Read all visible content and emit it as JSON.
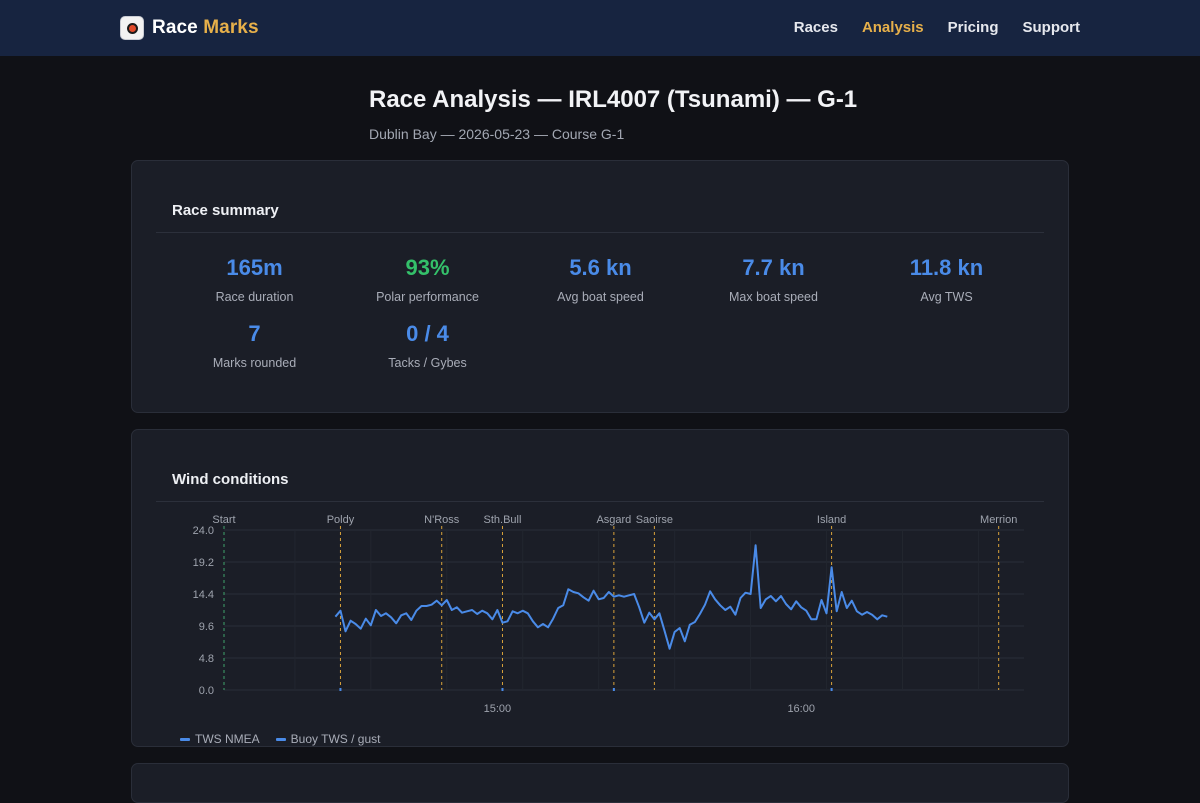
{
  "brand": {
    "name_part1": "Race",
    "name_part2": "Marks"
  },
  "nav": {
    "items": [
      "Races",
      "Analysis",
      "Pricing",
      "Support"
    ],
    "active": "Analysis"
  },
  "page": {
    "title": "Race Analysis — IRL4007 (Tsunami) — G-1",
    "subtitle": "Dublin Bay — 2026-05-23 — Course G-1"
  },
  "summary": {
    "title": "Race summary",
    "stats": [
      {
        "value": "165m",
        "label": "Race duration"
      },
      {
        "value": "93%",
        "label": "Polar performance"
      },
      {
        "value": "5.6 kn",
        "label": "Avg boat speed"
      },
      {
        "value": "7.7 kn",
        "label": "Max boat speed"
      },
      {
        "value": "11.8 kn",
        "label": "Avg TWS"
      },
      {
        "value": "7",
        "label": "Marks rounded"
      },
      {
        "value": "0 / 4",
        "label": "Tacks / Gybes"
      }
    ]
  },
  "wind": {
    "title": "Wind conditions"
  },
  "colors": {
    "accent": "#4a8be8",
    "green": "#34c06a",
    "brand_gold": "#e7b04a",
    "mark_line": "#d9a23a",
    "start_line": "#3fa36b"
  },
  "chart_data": {
    "type": "line",
    "title": "",
    "xlabel": "",
    "ylabel": "",
    "ylim": [
      0,
      24
    ],
    "yticks": [
      "0.0",
      "4.8",
      "9.6",
      "14.4",
      "19.2",
      "24.0"
    ],
    "xticks": [
      "15:00",
      "16:00"
    ],
    "grid": true,
    "legend_position": "bottom-left",
    "marks": [
      {
        "name": "Start",
        "time": "14:06"
      },
      {
        "name": "Poldy",
        "time": "14:29"
      },
      {
        "name": "N'Ross",
        "time": "14:49"
      },
      {
        "name": "Sth.Bull",
        "time": "15:01"
      },
      {
        "name": "Asgard",
        "time": "15:23"
      },
      {
        "name": "Saoirse",
        "time": "15:31"
      },
      {
        "name": "Island",
        "time": "16:06"
      },
      {
        "name": "Merrion",
        "time": "16:39"
      }
    ],
    "series": [
      {
        "name": "TWS NMEA",
        "x": [
          "14:28",
          "14:29",
          "14:30",
          "14:31",
          "14:32",
          "14:33",
          "14:34",
          "14:35",
          "14:36",
          "14:37",
          "14:38",
          "14:39",
          "14:40",
          "14:41",
          "14:42",
          "14:43",
          "14:44",
          "14:45",
          "14:46",
          "14:47",
          "14:48",
          "14:49",
          "14:50",
          "14:51",
          "14:52",
          "14:53",
          "14:54",
          "14:55",
          "14:56",
          "14:57",
          "14:58",
          "14:59",
          "15:00",
          "15:01",
          "15:02",
          "15:03",
          "15:04",
          "15:05",
          "15:06",
          "15:07",
          "15:08",
          "15:09",
          "15:10",
          "15:11",
          "15:12",
          "15:13",
          "15:14",
          "15:15",
          "15:16",
          "15:17",
          "15:18",
          "15:19",
          "15:20",
          "15:21",
          "15:22",
          "15:23",
          "15:24",
          "15:25",
          "15:26",
          "15:27",
          "15:28",
          "15:29",
          "15:30",
          "15:31",
          "15:32",
          "15:33",
          "15:34",
          "15:35",
          "15:36",
          "15:37",
          "15:38",
          "15:39",
          "15:40",
          "15:41",
          "15:42",
          "15:43",
          "15:44",
          "15:45",
          "15:46",
          "15:47",
          "15:48",
          "15:49",
          "15:50",
          "15:51",
          "15:52",
          "15:53",
          "15:54",
          "15:55",
          "15:56",
          "15:57",
          "15:58",
          "15:59",
          "16:00",
          "16:01",
          "16:02",
          "16:03",
          "16:04",
          "16:05",
          "16:06",
          "16:07",
          "16:08",
          "16:09",
          "16:10",
          "16:11",
          "16:12",
          "16:13",
          "16:14",
          "16:15",
          "16:16",
          "16:17"
        ],
        "y": [
          11.0,
          11.9,
          8.8,
          10.4,
          9.9,
          9.2,
          10.7,
          9.7,
          12.0,
          11.1,
          11.5,
          10.9,
          10.0,
          11.2,
          11.5,
          10.5,
          11.9,
          12.6,
          12.6,
          12.8,
          13.4,
          12.7,
          13.5,
          12.0,
          12.4,
          11.6,
          11.8,
          12.0,
          11.4,
          11.9,
          11.5,
          10.6,
          12.0,
          10.1,
          10.3,
          11.8,
          11.5,
          11.9,
          11.5,
          10.3,
          9.4,
          9.9,
          9.4,
          10.7,
          12.3,
          12.7,
          15.1,
          14.7,
          14.5,
          13.9,
          13.4,
          14.9,
          13.6,
          13.8,
          14.7,
          14.0,
          14.2,
          14.0,
          14.2,
          14.4,
          12.4,
          10.1,
          11.6,
          10.6,
          11.5,
          8.9,
          6.2,
          8.7,
          9.3,
          7.3,
          9.8,
          10.2,
          11.4,
          12.8,
          14.8,
          13.6,
          12.7,
          12.0,
          12.5,
          11.3,
          13.8,
          14.6,
          14.4,
          21.7,
          12.3,
          13.6,
          14.1,
          13.3,
          14.1,
          12.9,
          12.1,
          13.3,
          12.4,
          11.9,
          10.6,
          10.6,
          13.5,
          11.5,
          18.4,
          11.8,
          14.7,
          12.3,
          13.4,
          11.8,
          11.3,
          11.7,
          11.3,
          10.6,
          11.2,
          11.0
        ]
      },
      {
        "name": "Buoy TWS / gust",
        "x": [
          "14:29",
          "15:01",
          "15:23",
          "16:06"
        ],
        "y": [
          0.0,
          0.0,
          0.0,
          0.0
        ]
      }
    ]
  }
}
